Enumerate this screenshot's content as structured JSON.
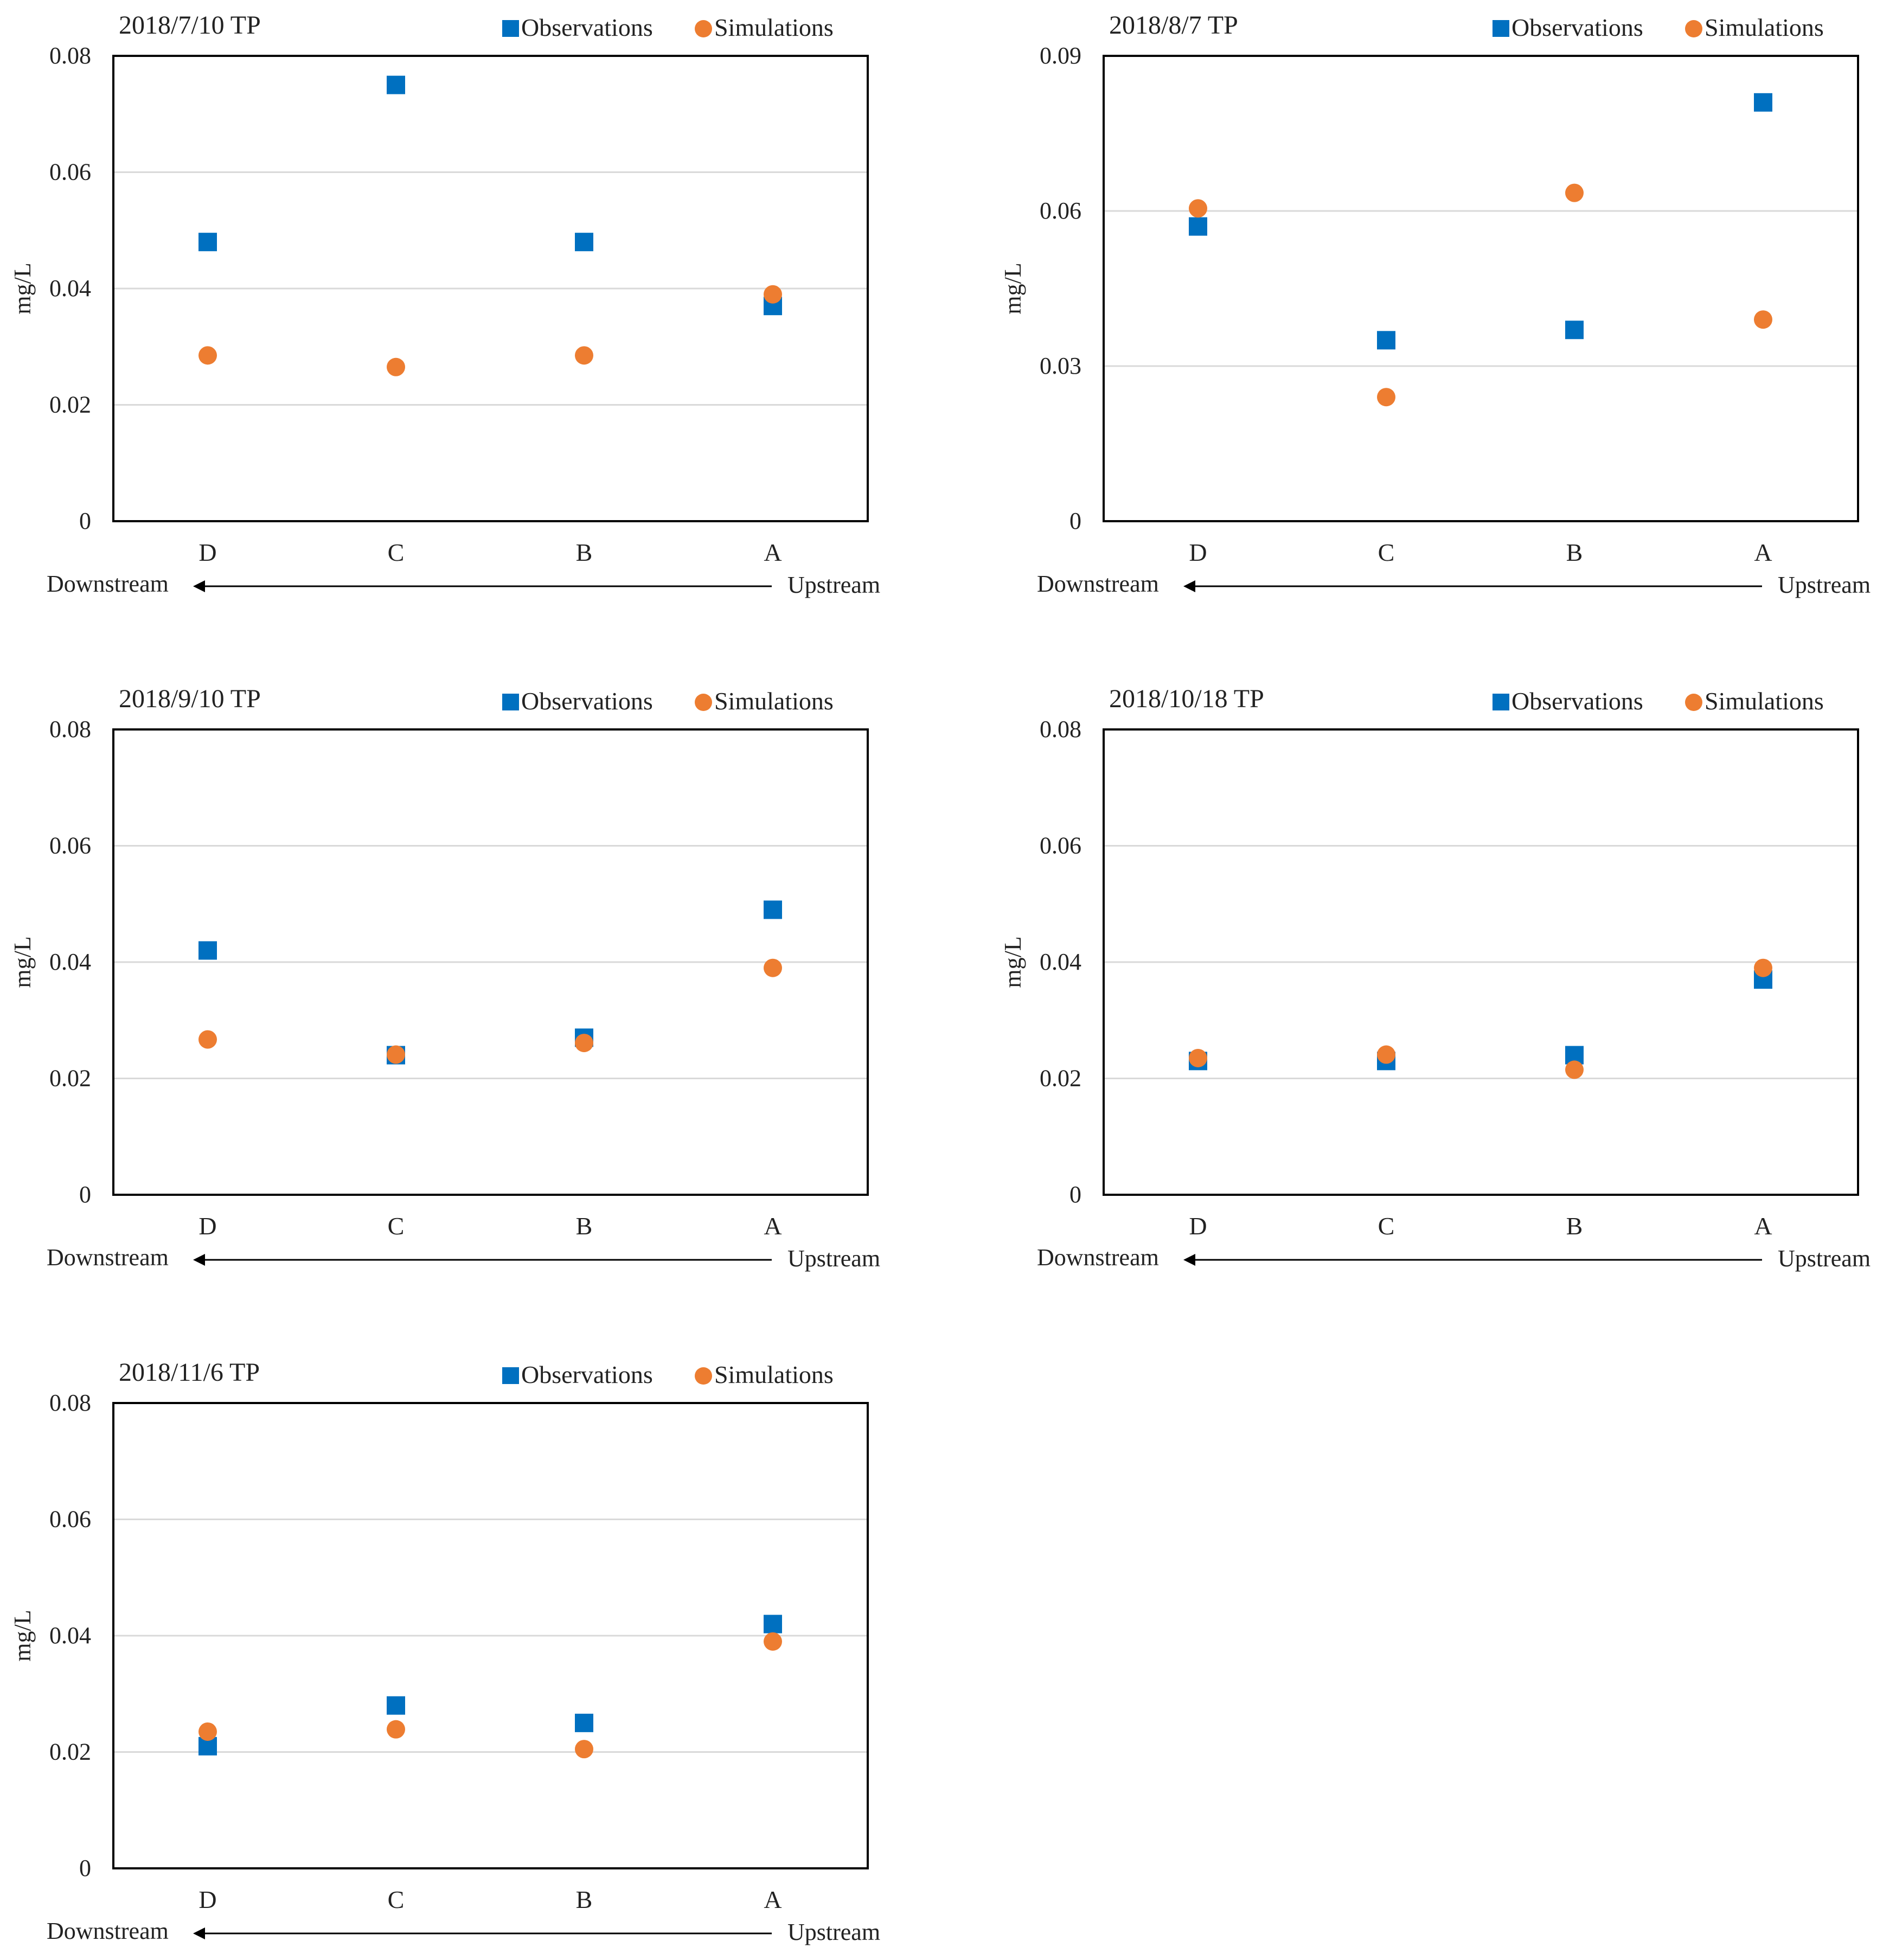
{
  "chart_data": [
    {
      "type": "scatter",
      "title": "2018/7/10   TP",
      "ylabel": "mg/L",
      "ylim": [
        0,
        0.08
      ],
      "yticks": [
        0,
        0.02,
        0.04,
        0.06,
        0.08
      ],
      "ytick_labels": [
        "0",
        "0.02",
        "0.04",
        "0.06",
        "0.08"
      ],
      "categories": [
        "D",
        "C",
        "B",
        "A"
      ],
      "series": [
        {
          "name": "Observations",
          "marker": "square",
          "values": [
            0.048,
            0.075,
            0.048,
            0.037
          ]
        },
        {
          "name": "Simulations",
          "marker": "circle",
          "values": [
            0.0285,
            0.0265,
            0.0285,
            0.039
          ]
        }
      ],
      "downstream_label": "Downstream",
      "upstream_label": "Upstream",
      "grid": true,
      "legend": "top-right"
    },
    {
      "type": "scatter",
      "title": "2018/8/7   TP",
      "ylabel": "mg/L",
      "ylim": [
        0,
        0.09
      ],
      "yticks": [
        0,
        0.03,
        0.06,
        0.09
      ],
      "ytick_labels": [
        "0",
        "0.03",
        "0.06",
        "0.09"
      ],
      "categories": [
        "D",
        "C",
        "B",
        "A"
      ],
      "series": [
        {
          "name": "Observations",
          "marker": "square",
          "values": [
            0.057,
            0.035,
            0.037,
            0.081
          ]
        },
        {
          "name": "Simulations",
          "marker": "circle",
          "values": [
            0.0605,
            0.024,
            0.0635,
            0.039
          ]
        }
      ],
      "downstream_label": "Downstream",
      "upstream_label": "Upstream",
      "grid": true,
      "legend": "top-right"
    },
    {
      "type": "scatter",
      "title": "2018/9/10   TP",
      "ylabel": "mg/L",
      "ylim": [
        0,
        0.08
      ],
      "yticks": [
        0,
        0.02,
        0.04,
        0.06,
        0.08
      ],
      "ytick_labels": [
        "0",
        "0.02",
        "0.04",
        "0.06",
        "0.08"
      ],
      "categories": [
        "D",
        "C",
        "B",
        "A"
      ],
      "series": [
        {
          "name": "Observations",
          "marker": "square",
          "values": [
            0.042,
            0.024,
            0.027,
            0.049
          ]
        },
        {
          "name": "Simulations",
          "marker": "circle",
          "values": [
            0.0267,
            0.0241,
            0.0261,
            0.039
          ]
        }
      ],
      "downstream_label": "Downstream",
      "upstream_label": "Upstream",
      "grid": true,
      "legend": "top-right"
    },
    {
      "type": "scatter",
      "title": "2018/10/18   TP",
      "ylabel": "mg/L",
      "ylim": [
        0,
        0.08
      ],
      "yticks": [
        0,
        0.02,
        0.04,
        0.06,
        0.08
      ],
      "ytick_labels": [
        "0",
        "0.02",
        "0.04",
        "0.06",
        "0.08"
      ],
      "categories": [
        "D",
        "C",
        "B",
        "A"
      ],
      "series": [
        {
          "name": "Observations",
          "marker": "square",
          "values": [
            0.023,
            0.023,
            0.024,
            0.037
          ]
        },
        {
          "name": "Simulations",
          "marker": "circle",
          "values": [
            0.0235,
            0.0241,
            0.0215,
            0.039
          ]
        }
      ],
      "downstream_label": "Downstream",
      "upstream_label": "Upstream",
      "grid": true,
      "legend": "top-right"
    },
    {
      "type": "scatter",
      "title": "2018/11/6   TP",
      "ylabel": "mg/L",
      "ylim": [
        0,
        0.08
      ],
      "yticks": [
        0,
        0.02,
        0.04,
        0.06,
        0.08
      ],
      "ytick_labels": [
        "0",
        "0.02",
        "0.04",
        "0.06",
        "0.08"
      ],
      "categories": [
        "D",
        "C",
        "B",
        "A"
      ],
      "series": [
        {
          "name": "Observations",
          "marker": "square",
          "values": [
            0.021,
            0.028,
            0.025,
            0.042
          ]
        },
        {
          "name": "Simulations",
          "marker": "circle",
          "values": [
            0.0235,
            0.0239,
            0.0205,
            0.039
          ]
        }
      ],
      "downstream_label": "Downstream",
      "upstream_label": "Upstream",
      "grid": true,
      "legend": "top-right"
    }
  ],
  "colors": {
    "observations": "#0070C0",
    "simulations": "#ED7D31",
    "gridline": "#D9D9D9",
    "axis": "#000000",
    "text": "#222222"
  }
}
